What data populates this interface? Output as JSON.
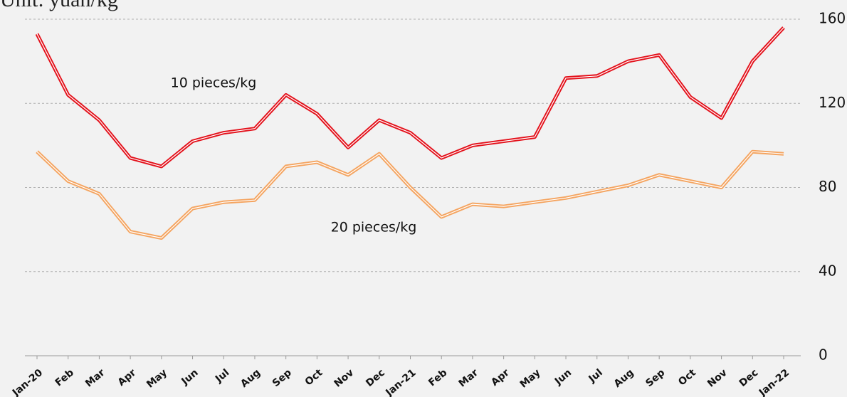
{
  "chart_data": {
    "type": "line",
    "title": "Unit: yuan/kg",
    "categories": [
      "Jan-20",
      "Feb",
      "Mar",
      "Apr",
      "May",
      "Jun",
      "Jul",
      "Aug",
      "Sep",
      "Oct",
      "Nov",
      "Dec",
      "Jan-21",
      "Feb",
      "Mar",
      "Apr",
      "May",
      "Jun",
      "Jul",
      "Aug",
      "Sep",
      "Oct",
      "Nov",
      "Dec",
      "Jan-22"
    ],
    "series": [
      {
        "name": "10 pieces/kg",
        "color": "#e3101a",
        "values": [
          153,
          124,
          112,
          94,
          90,
          102,
          106,
          108,
          124,
          115,
          99,
          112,
          106,
          94,
          100,
          102,
          104,
          132,
          133,
          140,
          143,
          123,
          113,
          140,
          156
        ]
      },
      {
        "name": "20 pieces/kg",
        "color": "#f4a460",
        "values": [
          97,
          83,
          77,
          59,
          56,
          70,
          73,
          74,
          90,
          92,
          86,
          96,
          80,
          66,
          72,
          71,
          73,
          75,
          78,
          81,
          86,
          83,
          80,
          97,
          96
        ]
      }
    ],
    "ylim": [
      0,
      160
    ],
    "yticks": [
      0,
      40,
      80,
      120,
      160
    ],
    "grid": true,
    "y_axis_side": "right"
  }
}
